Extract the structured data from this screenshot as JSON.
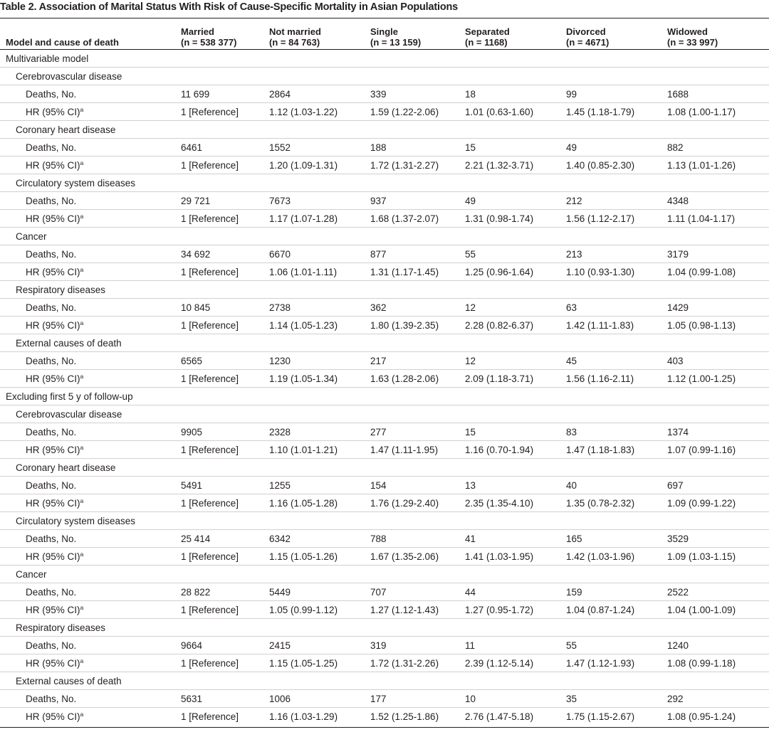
{
  "title": "Table 2. Association of Marital Status With Risk of Cause-Specific Mortality in Asian Populations",
  "header": {
    "col0": "Model and cause of death",
    "columns": [
      {
        "name": "Married",
        "n": "(n = 538 377)"
      },
      {
        "name": "Not married",
        "n": "(n = 84 763)"
      },
      {
        "name": "Single",
        "n": "(n = 13 159)"
      },
      {
        "name": "Separated",
        "n": "(n = 1168)"
      },
      {
        "name": "Divorced",
        "n": "(n = 4671)"
      },
      {
        "name": "Widowed",
        "n": "(n = 33 997)"
      }
    ]
  },
  "row_labels": {
    "deaths": "Deaths, No.",
    "hr": "HR (95% CI)",
    "hr_sup": "a"
  },
  "models": [
    {
      "label": "Multivariable model",
      "causes": [
        {
          "label": "Cerebrovascular disease",
          "deaths": [
            "11 699",
            "2864",
            "339",
            "18",
            "99",
            "1688"
          ],
          "hr": [
            "1 [Reference]",
            "1.12 (1.03-1.22)",
            "1.59 (1.22-2.06)",
            "1.01 (0.63-1.60)",
            "1.45 (1.18-1.79)",
            "1.08 (1.00-1.17)"
          ]
        },
        {
          "label": "Coronary heart disease",
          "deaths": [
            "6461",
            "1552",
            "188",
            "15",
            "49",
            "882"
          ],
          "hr": [
            "1 [Reference]",
            "1.20 (1.09-1.31)",
            "1.72 (1.31-2.27)",
            "2.21 (1.32-3.71)",
            "1.40 (0.85-2.30)",
            "1.13 (1.01-1.26)"
          ]
        },
        {
          "label": "Circulatory system diseases",
          "deaths": [
            "29 721",
            "7673",
            "937",
            "49",
            "212",
            "4348"
          ],
          "hr": [
            "1 [Reference]",
            "1.17 (1.07-1.28)",
            "1.68 (1.37-2.07)",
            "1.31 (0.98-1.74)",
            "1.56 (1.12-2.17)",
            "1.11 (1.04-1.17)"
          ]
        },
        {
          "label": "Cancer",
          "deaths": [
            "34 692",
            "6670",
            "877",
            "55",
            "213",
            "3179"
          ],
          "hr": [
            "1 [Reference]",
            "1.06 (1.01-1.11)",
            "1.31 (1.17-1.45)",
            "1.25 (0.96-1.64)",
            "1.10 (0.93-1.30)",
            "1.04 (0.99-1.08)"
          ]
        },
        {
          "label": "Respiratory diseases",
          "deaths": [
            "10 845",
            "2738",
            "362",
            "12",
            "63",
            "1429"
          ],
          "hr": [
            "1 [Reference]",
            "1.14 (1.05-1.23)",
            "1.80 (1.39-2.35)",
            "2.28 (0.82-6.37)",
            "1.42 (1.11-1.83)",
            "1.05 (0.98-1.13)"
          ]
        },
        {
          "label": "External causes of death",
          "deaths": [
            "6565",
            "1230",
            "217",
            "12",
            "45",
            "403"
          ],
          "hr": [
            "1 [Reference]",
            "1.19 (1.05-1.34)",
            "1.63 (1.28-2.06)",
            "2.09 (1.18-3.71)",
            "1.56 (1.16-2.11)",
            "1.12 (1.00-1.25)"
          ]
        }
      ]
    },
    {
      "label": "Excluding first 5 y of follow-up",
      "causes": [
        {
          "label": "Cerebrovascular disease",
          "deaths": [
            "9905",
            "2328",
            "277",
            "15",
            "83",
            "1374"
          ],
          "hr": [
            "1 [Reference]",
            "1.10 (1.01-1.21)",
            "1.47 (1.11-1.95)",
            "1.16 (0.70-1.94)",
            "1.47 (1.18-1.83)",
            "1.07 (0.99-1.16)"
          ]
        },
        {
          "label": "Coronary heart disease",
          "deaths": [
            "5491",
            "1255",
            "154",
            "13",
            "40",
            "697"
          ],
          "hr": [
            "1 [Reference]",
            "1.16 (1.05-1.28)",
            "1.76 (1.29-2.40)",
            "2.35 (1.35-4.10)",
            "1.35 (0.78-2.32)",
            "1.09 (0.99-1.22)"
          ]
        },
        {
          "label": "Circulatory system diseases",
          "deaths": [
            "25 414",
            "6342",
            "788",
            "41",
            "165",
            "3529"
          ],
          "hr": [
            "1 [Reference]",
            "1.15 (1.05-1.26)",
            "1.67 (1.35-2.06)",
            "1.41 (1.03-1.95)",
            "1.42 (1.03-1.96)",
            "1.09 (1.03-1.15)"
          ]
        },
        {
          "label": "Cancer",
          "deaths": [
            "28 822",
            "5449",
            "707",
            "44",
            "159",
            "2522"
          ],
          "hr": [
            "1 [Reference]",
            "1.05 (0.99-1.12)",
            "1.27 (1.12-1.43)",
            "1.27 (0.95-1.72)",
            "1.04 (0.87-1.24)",
            "1.04 (1.00-1.09)"
          ]
        },
        {
          "label": "Respiratory diseases",
          "deaths": [
            "9664",
            "2415",
            "319",
            "11",
            "55",
            "1240"
          ],
          "hr": [
            "1 [Reference]",
            "1.15 (1.05-1.25)",
            "1.72 (1.31-2.26)",
            "2.39 (1.12-5.14)",
            "1.47 (1.12-1.93)",
            "1.08 (0.99-1.18)"
          ]
        },
        {
          "label": "External causes of death",
          "deaths": [
            "5631",
            "1006",
            "177",
            "10",
            "35",
            "292"
          ],
          "hr": [
            "1 [Reference]",
            "1.16 (1.03-1.29)",
            "1.52 (1.25-1.86)",
            "2.76 (1.47-5.18)",
            "1.75 (1.15-2.67)",
            "1.08 (0.95-1.24)"
          ]
        }
      ]
    }
  ]
}
